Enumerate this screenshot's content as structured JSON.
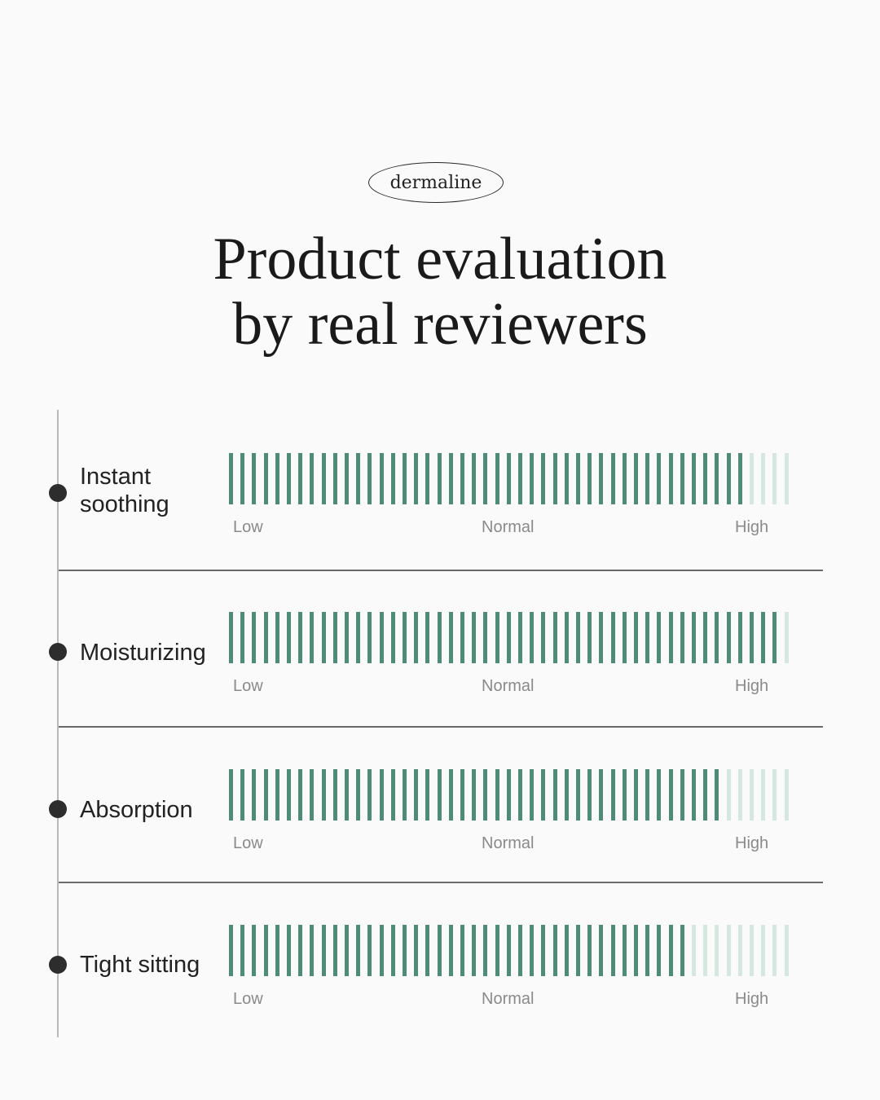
{
  "brand": "dermaline",
  "title_line1": "Product evaluation",
  "title_line2": "by real reviewers",
  "scale": {
    "low": "Low",
    "normal": "Normal",
    "high": "High"
  },
  "colors": {
    "bar_filled": "#4f8c78",
    "bar_empty": "#d6e7df"
  },
  "ticks_total": 49,
  "criteria": [
    {
      "label": "Instant\nsoothing",
      "filled": 45
    },
    {
      "label": "Moisturizing",
      "filled": 48
    },
    {
      "label": "Absorption",
      "filled": 43
    },
    {
      "label": "Tight sitting",
      "filled": 40
    }
  ]
}
